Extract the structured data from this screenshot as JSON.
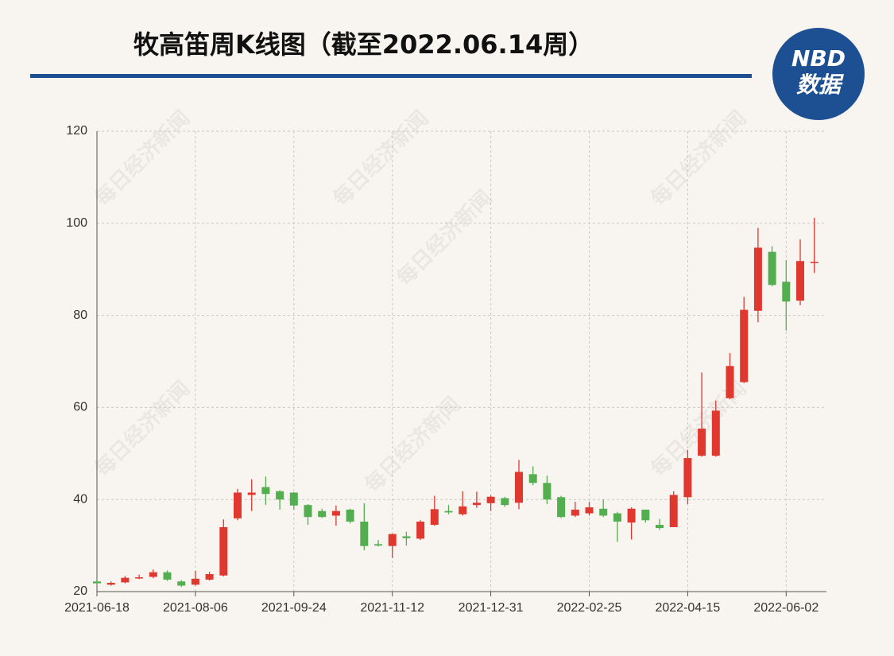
{
  "chart_data": {
    "type": "candlestick",
    "title": "牧高笛周K线图（截至2022.06.14周）",
    "watermark": "每日经济新闻",
    "categories": [
      "2021-06-18",
      null,
      null,
      null,
      null,
      null,
      null,
      "2021-08-06",
      null,
      null,
      null,
      null,
      null,
      null,
      "2021-09-24",
      null,
      null,
      null,
      null,
      null,
      null,
      "2021-11-12",
      null,
      null,
      null,
      null,
      null,
      null,
      "2021-12-31",
      null,
      null,
      null,
      null,
      null,
      null,
      "2022-02-25",
      null,
      null,
      null,
      null,
      null,
      null,
      "2022-04-15",
      null,
      null,
      null,
      null,
      null,
      null,
      "2022-06-02",
      null,
      null
    ],
    "open": [
      22.2,
      21.5,
      22.0,
      22.9,
      23.2,
      24.2,
      22.2,
      21.5,
      22.6,
      23.5,
      35.9,
      41.0,
      42.7,
      41.8,
      41.5,
      38.8,
      37.5,
      36.5,
      37.8,
      35.2,
      30.3,
      29.9,
      32.0,
      31.5,
      34.5,
      37.5,
      36.8,
      38.8,
      39.2,
      40.3,
      39.3,
      45.5,
      43.6,
      40.5,
      36.5,
      37.0,
      38.0,
      37.0,
      35.0,
      37.8,
      34.5,
      34.0,
      40.5,
      49.5,
      49.5,
      62.0,
      65.5,
      81.0,
      93.8,
      87.3,
      83.2,
      91.5
    ],
    "high": [
      22.4,
      22.2,
      23.4,
      23.7,
      24.8,
      24.6,
      22.5,
      24.5,
      24.3,
      35.7,
      42.3,
      44.4,
      45.0,
      42.0,
      41.6,
      39.0,
      38.0,
      38.7,
      38.0,
      39.2,
      31.2,
      32.6,
      33.0,
      35.5,
      40.8,
      38.8,
      41.8,
      41.7,
      40.9,
      40.6,
      48.6,
      47.2,
      45.2,
      40.8,
      39.5,
      39.5,
      40.0,
      37.3,
      38.3,
      37.8,
      35.8,
      41.8,
      50.8,
      67.6,
      61.5,
      71.8,
      84.0,
      99.0,
      95.0,
      92.0,
      96.5,
      101.2
    ],
    "low": [
      21.6,
      21.3,
      21.8,
      22.7,
      22.9,
      22.3,
      21.0,
      21.3,
      22.4,
      23.3,
      35.5,
      37.5,
      38.8,
      37.8,
      37.8,
      34.5,
      36.0,
      34.3,
      34.8,
      29.0,
      29.8,
      27.3,
      30.0,
      31.2,
      34.3,
      36.8,
      36.5,
      38.2,
      37.5,
      38.4,
      37.9,
      43.1,
      39.0,
      36.0,
      36.2,
      36.5,
      36.2,
      30.8,
      31.3,
      35.0,
      33.4,
      34.0,
      39.0,
      49.3,
      49.3,
      61.8,
      65.3,
      78.5,
      86.3,
      76.7,
      82.2,
      89.2
    ],
    "close": [
      21.8,
      21.9,
      23.0,
      23.1,
      24.2,
      22.6,
      21.3,
      22.8,
      23.8,
      34.0,
      41.5,
      41.5,
      41.2,
      40.0,
      38.7,
      36.2,
      36.2,
      37.5,
      35.2,
      29.9,
      30.0,
      32.5,
      31.6,
      35.2,
      37.9,
      37.2,
      38.5,
      39.3,
      40.6,
      38.8,
      46.0,
      43.6,
      40.0,
      36.2,
      37.8,
      38.3,
      36.5,
      35.2,
      38.0,
      35.5,
      33.8,
      41.0,
      49.0,
      55.4,
      59.3,
      69.0,
      81.2,
      94.7,
      86.6,
      83.0,
      91.8,
      91.6
    ],
    "up_color": "#e0372f",
    "down_color": "#52ae4f",
    "ylim": [
      20,
      120
    ],
    "yticks": [
      20,
      40,
      60,
      80,
      100,
      120
    ],
    "grid": true
  },
  "logo": {
    "top": "NBD",
    "bottom": "数据"
  }
}
